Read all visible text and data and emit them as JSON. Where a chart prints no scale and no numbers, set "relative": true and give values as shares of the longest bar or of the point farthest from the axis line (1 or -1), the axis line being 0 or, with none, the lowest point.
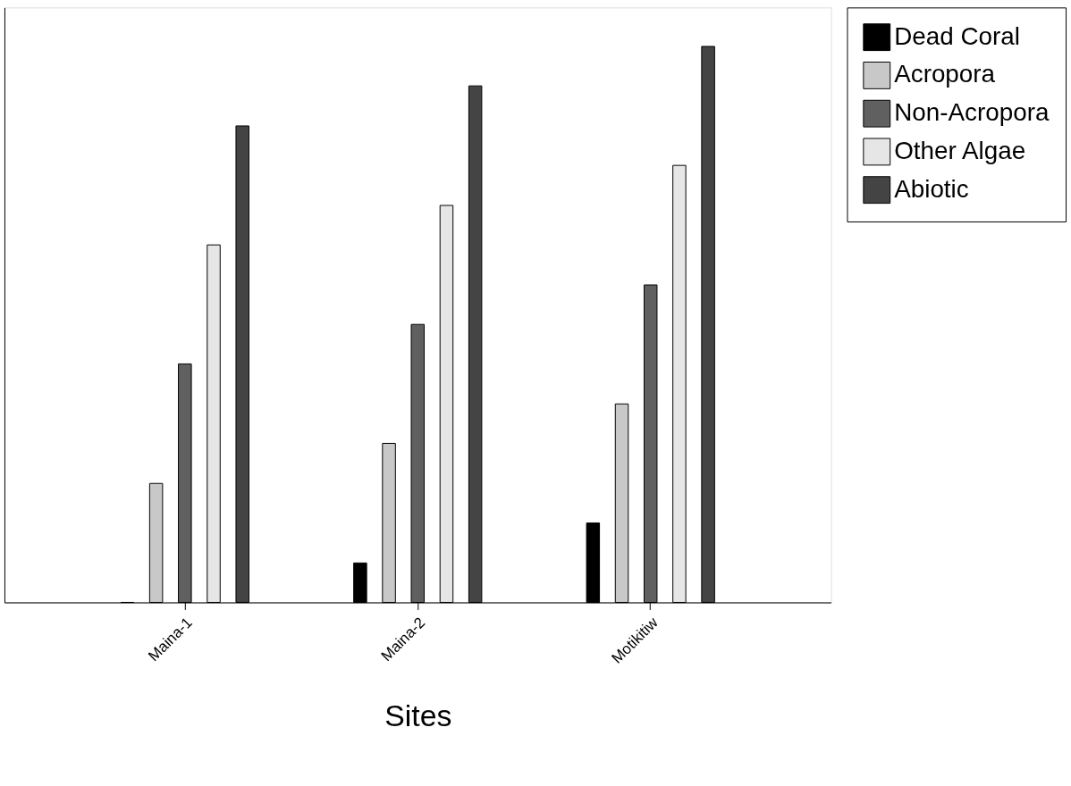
{
  "chart_data": {
    "type": "bar",
    "relative": true,
    "xlabel": "Sites",
    "categories": [
      "Maina-1",
      "Maina-2",
      "Motikitiw"
    ],
    "series": [
      {
        "name": "Dead Coral",
        "color": "#000000",
        "values": [
          0,
          0.071,
          0.143
        ]
      },
      {
        "name": "Acropora",
        "color": "#c8c8c8",
        "values": [
          0.214,
          0.286,
          0.357
        ]
      },
      {
        "name": "Non-Acropora",
        "color": "#606060",
        "values": [
          0.429,
          0.5,
          0.571
        ]
      },
      {
        "name": "Other Algae",
        "color": "#e6e6e6",
        "values": [
          0.643,
          0.714,
          0.786
        ]
      },
      {
        "name": "Abiotic",
        "color": "#444444",
        "values": [
          0.857,
          0.929,
          1
        ]
      }
    ],
    "legend": "top right",
    "grid": false
  }
}
